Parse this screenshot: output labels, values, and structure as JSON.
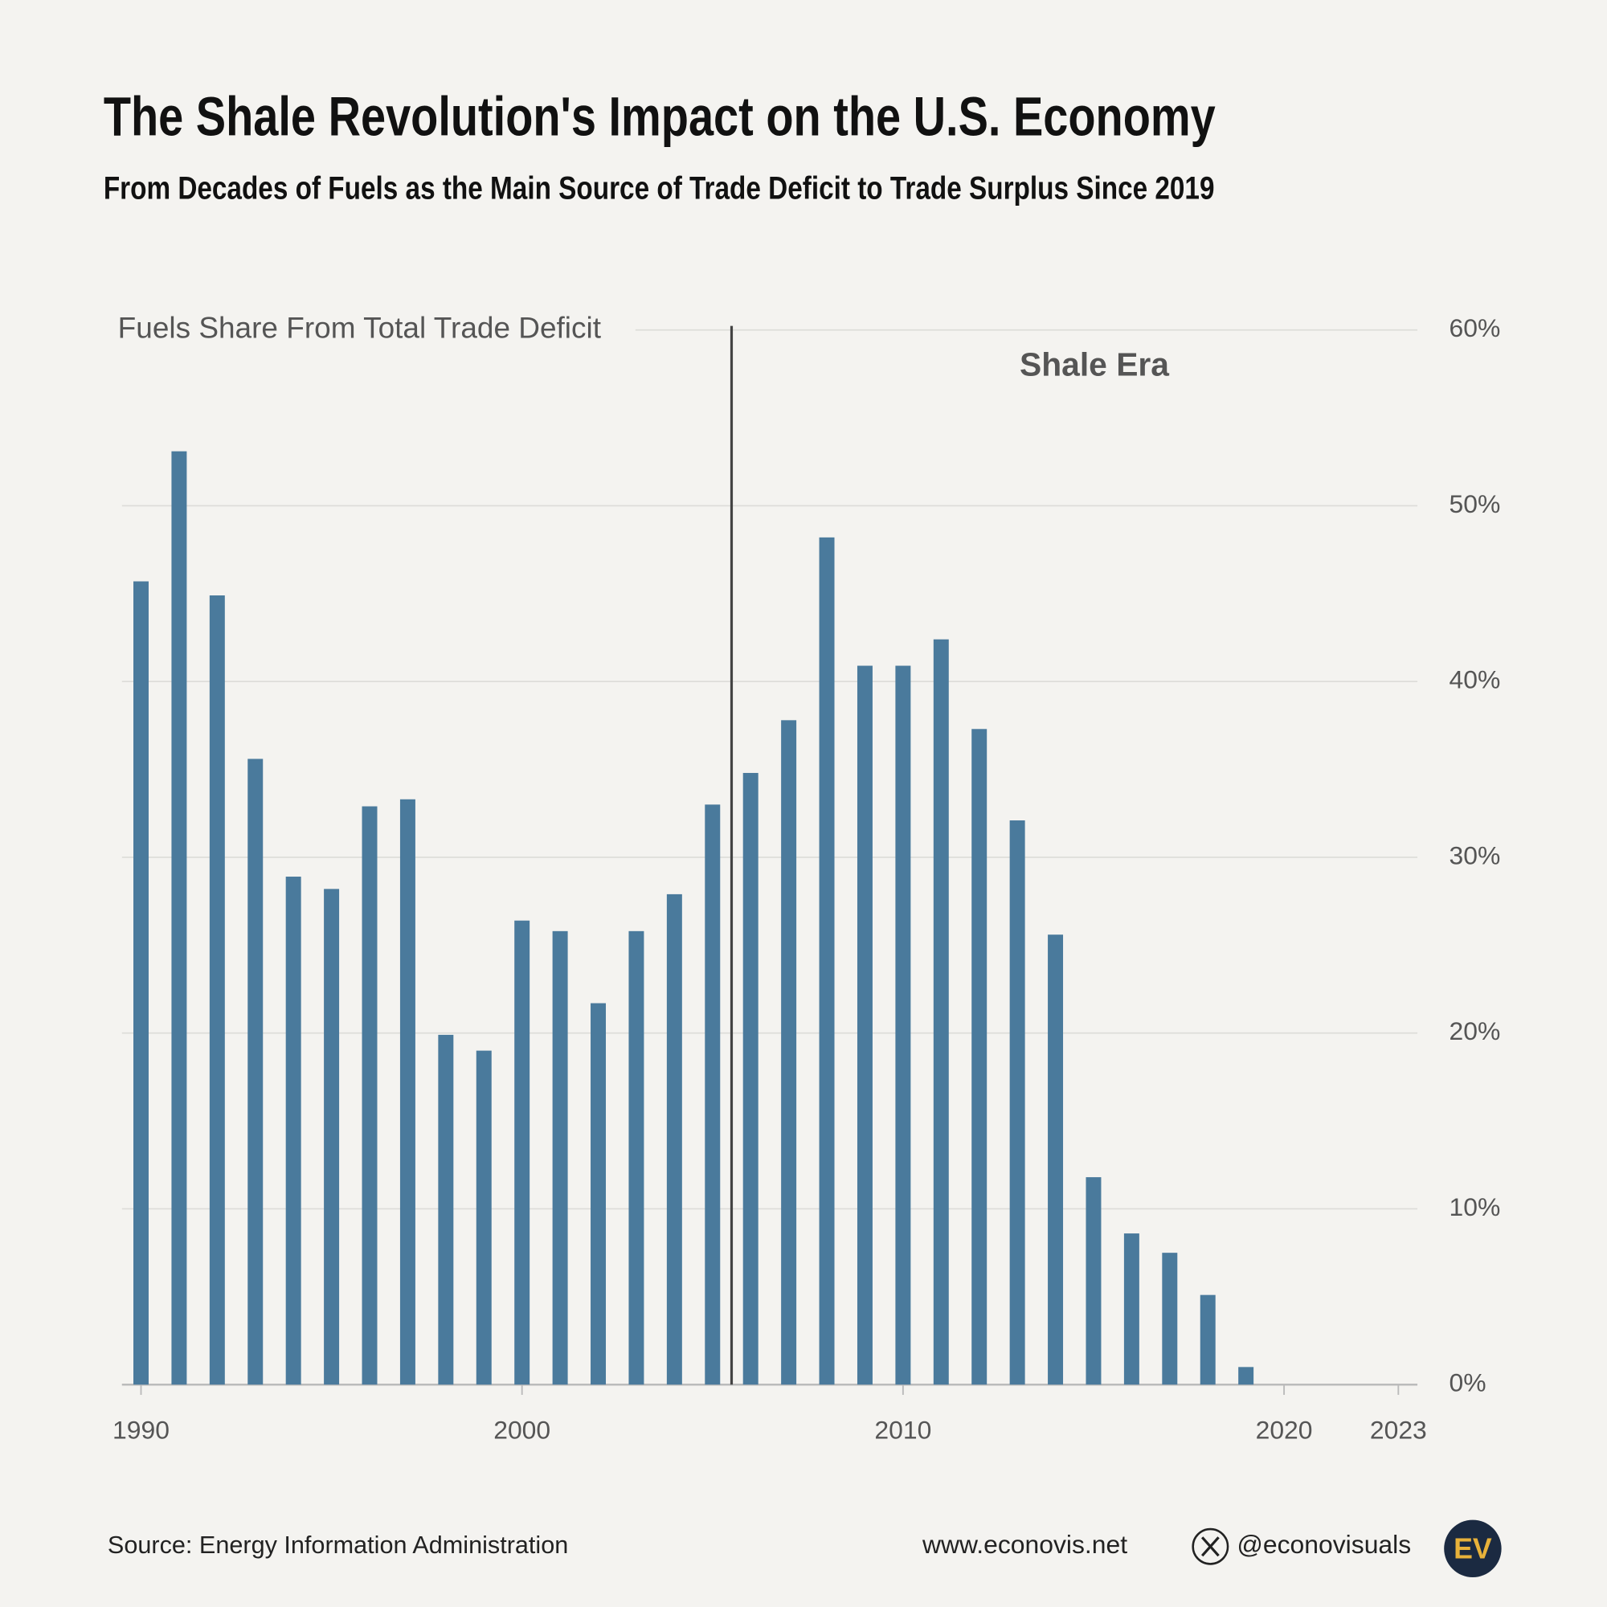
{
  "chart_data": {
    "type": "bar",
    "title": "The Shale Revolution's Impact on the U.S. Economy",
    "subtitle": "From Decades of Fuels as the Main Source of Trade Deficit to Trade Surplus Since 2019",
    "y_label": "Fuels Share From Total Trade Deficit",
    "x": [
      1990,
      1991,
      1992,
      1993,
      1994,
      1995,
      1996,
      1997,
      1998,
      1999,
      2000,
      2001,
      2002,
      2003,
      2004,
      2005,
      2006,
      2007,
      2008,
      2009,
      2010,
      2011,
      2012,
      2013,
      2014,
      2015,
      2016,
      2017,
      2018,
      2019,
      2020,
      2021,
      2022,
      2023
    ],
    "values": [
      45.7,
      53.1,
      44.9,
      35.6,
      28.9,
      28.2,
      32.9,
      33.3,
      19.9,
      19.0,
      26.4,
      25.8,
      21.7,
      25.8,
      27.9,
      33.0,
      34.8,
      37.8,
      48.2,
      40.9,
      40.9,
      42.4,
      37.3,
      32.1,
      25.6,
      11.8,
      8.6,
      7.5,
      5.1,
      1.0,
      null,
      null,
      null,
      null
    ],
    "color": "#4a7a9c",
    "xlim": [
      1989.5,
      2023.5
    ],
    "xticks": [
      1990,
      2000,
      2010,
      2020,
      2023
    ],
    "ylim": [
      0,
      60
    ],
    "yticks": [
      {
        "value": 0,
        "label": "0%"
      },
      {
        "value": 10,
        "label": "10%"
      },
      {
        "value": 20,
        "label": "20%"
      },
      {
        "value": 30,
        "label": "30%"
      },
      {
        "value": 40,
        "label": "40%"
      },
      {
        "value": 50,
        "label": "50%"
      },
      {
        "value": 60,
        "label": "60%"
      }
    ],
    "y_axis_side": "right",
    "grid": true,
    "annotations": [
      {
        "text": "Shale Era",
        "x": 2005.5
      }
    ],
    "source": "Source: Energy Information Administration",
    "website": "www.econovis.net",
    "handle": "@econovisuals",
    "logo": "EV"
  }
}
